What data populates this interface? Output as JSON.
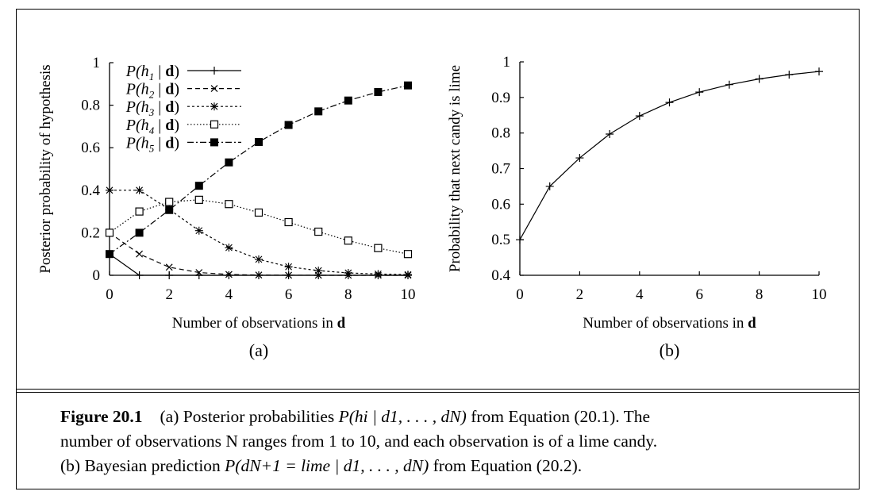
{
  "chart_data": [
    {
      "type": "line",
      "subplot_label": "(a)",
      "xlabel_text": "Number of observations in ",
      "xlabel_bold": "d",
      "ylabel": "Posterior probability of hypothesis",
      "xlim": [
        0,
        10
      ],
      "ylim": [
        0,
        1
      ],
      "xticks": [
        "0",
        "2",
        "4",
        "6",
        "8",
        "10"
      ],
      "yticks": [
        "0",
        "0.2",
        "0.4",
        "0.6",
        "0.8",
        "1"
      ],
      "legend_position": "top-left",
      "x": [
        0,
        1,
        2,
        3,
        4,
        5,
        6,
        7,
        8,
        9,
        10
      ],
      "series": [
        {
          "name": "P(h1 | d)",
          "legend": {
            "pre": "P(h",
            "sub": "1",
            "mid": " | ",
            "bold": "d",
            "post": ")"
          },
          "marker": "plus",
          "dash": "",
          "values": [
            0.1,
            0,
            0,
            0,
            0,
            0,
            0,
            0,
            0,
            0,
            0
          ]
        },
        {
          "name": "P(h2 | d)",
          "legend": {
            "pre": "P(h",
            "sub": "2",
            "mid": " | ",
            "bold": "d",
            "post": ")"
          },
          "marker": "x",
          "dash": "6,4",
          "values": [
            0.2,
            0.1,
            0.038,
            0.013,
            0.004,
            0.001,
            0.0003,
            0.0001,
            0,
            0,
            0
          ]
        },
        {
          "name": "P(h3 | d)",
          "legend": {
            "pre": "P(h",
            "sub": "3",
            "mid": " | ",
            "bold": "d",
            "post": ")"
          },
          "marker": "star",
          "dash": "3,3",
          "values": [
            0.4,
            0.4,
            0.31,
            0.21,
            0.13,
            0.075,
            0.04,
            0.022,
            0.011,
            0.006,
            0.003
          ]
        },
        {
          "name": "P(h4 | d)",
          "legend": {
            "pre": "P(h",
            "sub": "4",
            "mid": " | ",
            "bold": "d",
            "post": ")"
          },
          "marker": "square-open",
          "dash": "1.5,2.5",
          "values": [
            0.2,
            0.3,
            0.345,
            0.355,
            0.335,
            0.295,
            0.25,
            0.205,
            0.163,
            0.128,
            0.1
          ]
        },
        {
          "name": "P(h5 | d)",
          "legend": {
            "pre": "P(h",
            "sub": "5",
            "mid": " | ",
            "bold": "d",
            "post": ")"
          },
          "marker": "square-filled",
          "dash": "8,3,2,3",
          "values": [
            0.1,
            0.2,
            0.307,
            0.421,
            0.531,
            0.627,
            0.707,
            0.771,
            0.822,
            0.862,
            0.893
          ]
        }
      ]
    },
    {
      "type": "line",
      "subplot_label": "(b)",
      "xlabel_text": "Number of observations in ",
      "xlabel_bold": "d",
      "ylabel": "Probability that next candy is lime",
      "xlim": [
        0,
        10
      ],
      "ylim": [
        0.4,
        1
      ],
      "xticks": [
        "0",
        "2",
        "4",
        "6",
        "8",
        "10"
      ],
      "yticks": [
        "0.4",
        "0.5",
        "0.6",
        "0.7",
        "0.8",
        "0.9",
        "1"
      ],
      "x": [
        0,
        1,
        2,
        3,
        4,
        5,
        6,
        7,
        8,
        9,
        10
      ],
      "series": [
        {
          "marker": "plus",
          "dash": "",
          "values": [
            0.5,
            0.65,
            0.73,
            0.797,
            0.848,
            0.886,
            0.915,
            0.936,
            0.952,
            0.964,
            0.973
          ]
        }
      ]
    }
  ],
  "caption": {
    "figure_label": "Figure 20.1",
    "line1_a": "(a) Posterior probabilities ",
    "line1_math": "P(hi | d1, . . . , dN)",
    "line1_b": " from Equation (20.1).  The",
    "line2": "number of observations N ranges from 1 to 10, and each observation is of a lime candy.",
    "line3_a": "(b) Bayesian prediction ",
    "line3_math": "P(dN+1 = lime | d1, . . . , dN)",
    "line3_b": " from Equation (20.2)."
  }
}
